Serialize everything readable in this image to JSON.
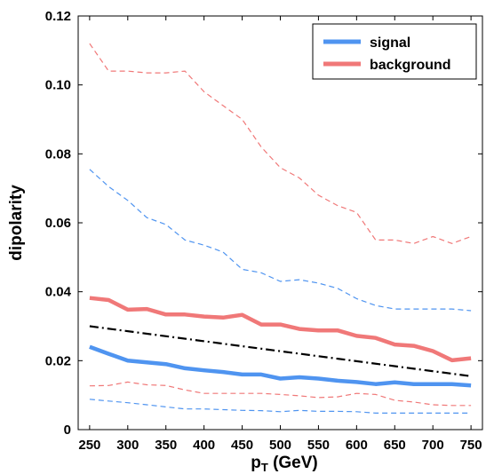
{
  "chart_data": {
    "type": "line",
    "title": "",
    "xlabel": "p",
    "xlabel_sub": "T",
    "xlabel_unit": " (GeV)",
    "ylabel": "dipolarity",
    "xlim": [
      235,
      765
    ],
    "ylim": [
      0,
      0.12
    ],
    "xticks": [
      250,
      300,
      350,
      400,
      450,
      500,
      550,
      600,
      650,
      700,
      750
    ],
    "xtick_labels": [
      "250",
      "300",
      "350",
      "400",
      "450",
      "500",
      "550",
      "600",
      "650",
      "700",
      "750"
    ],
    "yticks": [
      0,
      0.02,
      0.04,
      0.06,
      0.08,
      0.1,
      0.12
    ],
    "ytick_labels": [
      "0",
      "0.02",
      "0.04",
      "0.06",
      "0.08",
      "0.10",
      "0.12"
    ],
    "grid": false,
    "legend_position": "top-right",
    "x": [
      250,
      275,
      300,
      325,
      350,
      375,
      400,
      425,
      450,
      475,
      500,
      525,
      550,
      575,
      600,
      625,
      650,
      675,
      700,
      725,
      750
    ],
    "series": [
      {
        "name": "signal",
        "role": "median",
        "color": "#4f94f0",
        "values": [
          0.024,
          0.022,
          0.02,
          0.0195,
          0.019,
          0.0178,
          0.0172,
          0.0167,
          0.016,
          0.016,
          0.0148,
          0.0152,
          0.0148,
          0.0142,
          0.0138,
          0.0132,
          0.0137,
          0.0132,
          0.0132,
          0.0132,
          0.0128
        ]
      },
      {
        "name": "background",
        "role": "median",
        "color": "#f07878",
        "values": [
          0.0382,
          0.0376,
          0.0348,
          0.035,
          0.0334,
          0.0334,
          0.0328,
          0.0325,
          0.0333,
          0.0305,
          0.0305,
          0.0292,
          0.0288,
          0.0288,
          0.0272,
          0.0266,
          0.0247,
          0.0243,
          0.0228,
          0.0201,
          0.0207
        ]
      },
      {
        "role": "signal-upper-band",
        "color": "#4f94f0",
        "values": [
          0.0755,
          0.0705,
          0.0665,
          0.0615,
          0.0595,
          0.055,
          0.0535,
          0.0515,
          0.0465,
          0.0455,
          0.043,
          0.0435,
          0.0425,
          0.041,
          0.038,
          0.036,
          0.035,
          0.035,
          0.035,
          0.035,
          0.0345
        ]
      },
      {
        "role": "signal-lower-band",
        "color": "#4f94f0",
        "values": [
          0.0088,
          0.0083,
          0.0078,
          0.0072,
          0.0066,
          0.006,
          0.006,
          0.0058,
          0.0056,
          0.0055,
          0.0052,
          0.0056,
          0.0053,
          0.0053,
          0.0052,
          0.0048,
          0.0048,
          0.0048,
          0.0048,
          0.0048,
          0.0048
        ]
      },
      {
        "role": "background-upper-band",
        "color": "#f07878",
        "values": [
          0.112,
          0.104,
          0.104,
          0.1035,
          0.1035,
          0.104,
          0.098,
          0.094,
          0.09,
          0.082,
          0.076,
          0.073,
          0.068,
          0.065,
          0.063,
          0.055,
          0.055,
          0.054,
          0.056,
          0.054,
          0.056
        ]
      },
      {
        "role": "background-lower-band",
        "color": "#f07878",
        "values": [
          0.0127,
          0.0128,
          0.0138,
          0.013,
          0.0128,
          0.0115,
          0.0105,
          0.0105,
          0.0105,
          0.0105,
          0.0102,
          0.0098,
          0.0093,
          0.0095,
          0.0105,
          0.0102,
          0.0085,
          0.008,
          0.0072,
          0.007,
          0.007
        ]
      },
      {
        "role": "cut-line",
        "color": "#000000",
        "x": [
          250,
          750
        ],
        "values": [
          0.03,
          0.0155
        ]
      }
    ]
  }
}
